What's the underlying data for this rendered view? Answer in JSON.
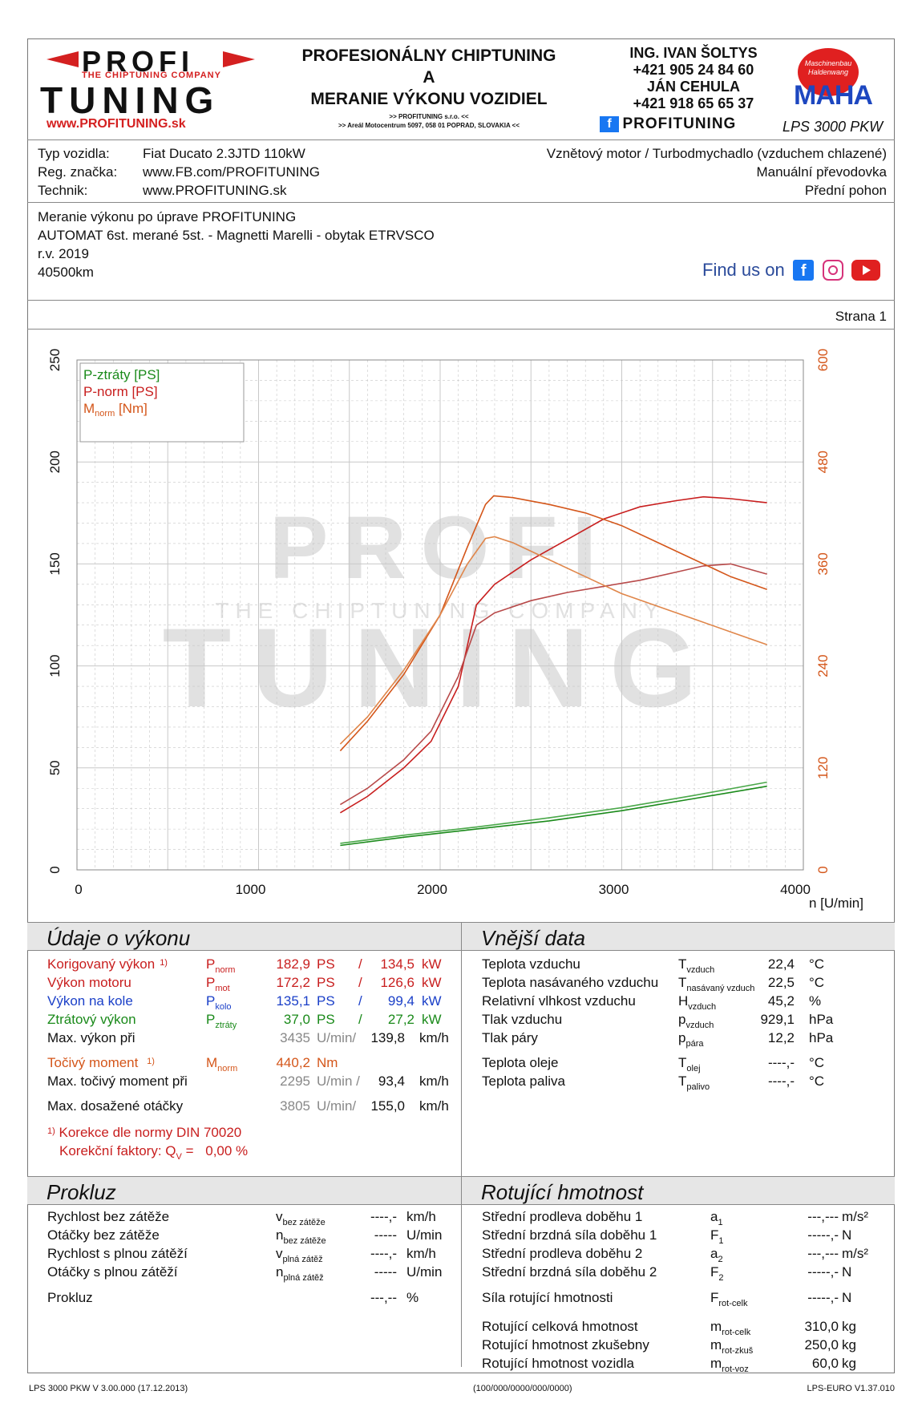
{
  "header": {
    "logo_top": "PROFI",
    "logo_tagline": "THE CHIPTUNING COMPANY",
    "logo_bottom": "TUNING",
    "logo_url": "www.PROFITUNING.sk",
    "title_line1": "PROFESIONÁLNY CHIPTUNING",
    "title_line2": "A",
    "title_line3": "MERANIE VÝKONU VOZIDIEL",
    "company_line1": ">> PROFITUNING s.r.o. <<",
    "company_line2": ">> Areál Motocentrum 5097, 058 01 POPRAD, SLOVAKIA <<",
    "contact1_name": "ING. IVAN ŠOLTYS",
    "contact1_phone": "+421 905 24 84 60",
    "contact2_name": "JÁN CEHULA",
    "contact2_phone": "+421 918 65 65 37",
    "social_brand": "PROFITUNING",
    "maha_text": "MAHA",
    "maha_ring": "Maschinenbau Haldenwang",
    "lps_model": "LPS 3000 PKW"
  },
  "vehicle": {
    "type_label": "Typ vozidla:",
    "type_value": "Fiat Ducato 2.3JTD 110kW",
    "reg_label": "Reg. značka:",
    "reg_value": "www.FB.com/PROFITUNING",
    "tech_label": "Technik:",
    "tech_value": "www.PROFITUNING.sk",
    "engine": "Vznětový motor / Turbodmychadlo (vzduchem chlazené)",
    "gearbox": "Manuální převodovka",
    "drive": "Přední pohon"
  },
  "notes": {
    "line1": "Meranie výkonu po úprave PROFITUNING",
    "line2": "AUTOMAT 6st. merané 5st. - Magnetti Marelli - obytak ETRVSCO",
    "line3": "r.v. 2019",
    "line4": "40500km",
    "find_us": "Find us on"
  },
  "page_label": "Strana 1",
  "chart_data": {
    "type": "line",
    "x_ticks": [
      "0",
      "1000",
      "2000",
      "3000",
      "4000"
    ],
    "y_left_ticks": [
      "0",
      "50",
      "100",
      "150",
      "200",
      "250"
    ],
    "y_right_ticks": [
      "0",
      "120",
      "240",
      "360",
      "480",
      "600"
    ],
    "xlabel": "n [U/min]",
    "xlim": [
      0,
      4000
    ],
    "ylim_left": [
      0,
      250
    ],
    "ylim_right": [
      0,
      600
    ],
    "grid": true,
    "legend_position": "top-left",
    "legend": [
      {
        "label": "P-ztráty [PS]",
        "color": "#1a8a1a"
      },
      {
        "label": "P-norm [PS]",
        "color": "#c81e1e"
      },
      {
        "label": "M",
        "sub": "norm",
        "unit": " [Nm]",
        "color": "#d4561a"
      }
    ],
    "series": [
      {
        "name": "P-ztráty [PS]",
        "axis": "left",
        "color": "#1a8a1a",
        "x": [
          1450,
          1800,
          2200,
          2600,
          3000,
          3400,
          3800
        ],
        "y": [
          12,
          16,
          20,
          24,
          29,
          35,
          41
        ]
      },
      {
        "name": "P-ztráty [PS]",
        "axis": "left",
        "color": "#4aa84a",
        "x": [
          1450,
          1800,
          2200,
          2600,
          3000,
          3400,
          3800
        ],
        "y": [
          13,
          17,
          21,
          25.5,
          30.5,
          36.5,
          43
        ]
      },
      {
        "name": "P-norm [PS]",
        "axis": "left",
        "color": "#c81e1e",
        "x": [
          1450,
          1600,
          1800,
          1950,
          2100,
          2200,
          2300,
          2500,
          2700,
          2900,
          3100,
          3300,
          3450,
          3600,
          3800
        ],
        "y": [
          28,
          36,
          50,
          63,
          90,
          130,
          140,
          152,
          162,
          172,
          178,
          181,
          182.9,
          182,
          180
        ]
      },
      {
        "name": "P-norm [PS]",
        "axis": "left",
        "color": "#b84a4a",
        "x": [
          1450,
          1600,
          1800,
          1950,
          2100,
          2200,
          2300,
          2500,
          2700,
          2900,
          3100,
          3300,
          3450,
          3600,
          3800
        ],
        "y": [
          32,
          40,
          54,
          68,
          95,
          120,
          126,
          132,
          136,
          139,
          142,
          146,
          149,
          150,
          145
        ]
      },
      {
        "name": "M norm [Nm]",
        "axis": "right",
        "color": "#d4561a",
        "x": [
          1450,
          1600,
          1800,
          2000,
          2150,
          2250,
          2295,
          2400,
          2600,
          2800,
          3000,
          3200,
          3400,
          3600,
          3800
        ],
        "y": [
          140,
          175,
          230,
          300,
          380,
          430,
          440.2,
          438,
          430,
          420,
          405,
          385,
          365,
          345,
          330
        ]
      },
      {
        "name": "M norm [Nm]",
        "axis": "right",
        "color": "#e0864a",
        "x": [
          1450,
          1600,
          1800,
          2000,
          2150,
          2250,
          2300,
          2400,
          2600,
          2800,
          3000,
          3200,
          3400,
          3600,
          3800
        ],
        "y": [
          148,
          180,
          235,
          300,
          360,
          390,
          392,
          385,
          365,
          345,
          325,
          310,
          295,
          280,
          265
        ]
      }
    ]
  },
  "vykon": {
    "title": "Údaje o výkonu",
    "rows": [
      {
        "label": "Korigovaný výkon",
        "sup": "1)",
        "sym": "P",
        "sub": "norm",
        "v1": "182,9",
        "u1": "PS",
        "sep": "/",
        "v2": "134,5",
        "u2": "kW"
      },
      {
        "label": "Výkon motoru",
        "sym": "P",
        "sub": "mot",
        "v1": "172,2",
        "u1": "PS",
        "sep": "/",
        "v2": "126,6",
        "u2": "kW"
      },
      {
        "label": "Výkon na kole",
        "sym": "P",
        "sub": "kolo",
        "v1": "135,1",
        "u1": "PS",
        "sep": "/",
        "v2": "99,4",
        "u2": "kW"
      },
      {
        "label": "Ztrátový výkon",
        "sym": "P",
        "sub": "ztráty",
        "v1": "37,0",
        "u1": "PS",
        "sep": "/",
        "v2": "27,2",
        "u2": "kW"
      }
    ],
    "maxvykon_label": "Max. výkon při",
    "maxvykon_rpm": "3435",
    "maxvykon_unit": "U/min/",
    "maxvykon_speed": "139,8",
    "maxvykon_speed_unit": "km/h",
    "moment_label": "Točivý moment",
    "moment_sup": "1)",
    "moment_sym": "M",
    "moment_sub": "norm",
    "moment_val": "440,2",
    "moment_unit": "Nm",
    "maxmoment_label": "Max. točivý moment při",
    "maxmoment_rpm": "2295",
    "maxmoment_unit": "U/min /",
    "maxmoment_speed": "93,4",
    "maxmoment_speed_unit": "km/h",
    "maxotacky_label": "Max. dosažené otáčky",
    "maxotacky_rpm": "3805",
    "maxotacky_unit": "U/min/",
    "maxotacky_speed": "155,0",
    "maxotacky_speed_unit": "km/h",
    "korekce_sup": "1)",
    "korekce_text": "Korekce dle normy DIN 70020",
    "faktor_label": "Korekční faktory: Q",
    "faktor_sub": "V",
    "faktor_eq": " =",
    "faktor_val": "0,00 %"
  },
  "vnejsi": {
    "title": "Vnější data",
    "rows": [
      {
        "label": "Teplota vzduchu",
        "sym": "T",
        "sub": "vzduch",
        "val": "22,4",
        "unit": "°C"
      },
      {
        "label": "Teplota nasávaného vzduchu",
        "sym": "T",
        "sub": "nasávaný vzduch",
        "val": "22,5",
        "unit": "°C"
      },
      {
        "label": "Relativní vlhkost vzduchu",
        "sym": "H",
        "sub": "vzduch",
        "val": "45,2",
        "unit": "%"
      },
      {
        "label": "Tlak vzduchu",
        "sym": "p",
        "sub": "vzduch",
        "val": "929,1",
        "unit": "hPa"
      },
      {
        "label": "Tlak páry",
        "sym": "p",
        "sub": "pára",
        "val": "12,2",
        "unit": "hPa"
      },
      {
        "label": "Teplota oleje",
        "sym": "T",
        "sub": "olej",
        "val": "----,-",
        "unit": "°C"
      },
      {
        "label": "Teplota paliva",
        "sym": "T",
        "sub": "palivo",
        "val": "----,-",
        "unit": "°C"
      }
    ]
  },
  "prokluz": {
    "title": "Prokluz",
    "rows": [
      {
        "label": "Rychlost bez zátěže",
        "sym": "v",
        "sub": "bez zátěže",
        "val": "----,-",
        "unit": "km/h"
      },
      {
        "label": "Otáčky bez zátěže",
        "sym": "n",
        "sub": "bez zátěže",
        "val": "-----",
        "unit": "U/min"
      },
      {
        "label": "Rychlost s plnou zátěží",
        "sym": "v",
        "sub": "plná zátěž",
        "val": "----,-",
        "unit": "km/h"
      },
      {
        "label": "Otáčky s plnou zátěží",
        "sym": "n",
        "sub": "plná zátěž",
        "val": "-----",
        "unit": "U/min"
      }
    ],
    "prokluz_label": "Prokluz",
    "prokluz_val": "---,--",
    "prokluz_unit": "%"
  },
  "rotujici": {
    "title": "Rotující hmotnost",
    "rows": [
      {
        "label": "Střední prodleva doběhu 1",
        "sym": "a",
        "sub": "1",
        "val": "---,---",
        "unit": "m/s²"
      },
      {
        "label": "Střední brzdná síla doběhu 1",
        "sym": "F",
        "sub": "1",
        "val": "-----,-",
        "unit": "N"
      },
      {
        "label": "Střední prodleva doběhu 2",
        "sym": "a",
        "sub": "2",
        "val": "---,---",
        "unit": "m/s²"
      },
      {
        "label": "Střední brzdná síla doběhu 2",
        "sym": "F",
        "sub": "2",
        "val": "-----,-",
        "unit": "N"
      }
    ],
    "sila": {
      "label": "Síla rotující hmotnosti",
      "sym": "F",
      "sub": "rot-celk",
      "val": "-----,-",
      "unit": "N"
    },
    "hmot_rows": [
      {
        "label": "Rotující celková hmotnost",
        "sym": "m",
        "sub": "rot-celk",
        "val": "310,0",
        "unit": "kg"
      },
      {
        "label": "Rotující hmotnost zkušebny",
        "sym": "m",
        "sub": "rot-zkuš",
        "val": "250,0",
        "unit": "kg"
      },
      {
        "label": "Rotující hmotnost vozidla",
        "sym": "m",
        "sub": "rot-voz",
        "val": "60,0",
        "unit": "kg"
      }
    ]
  },
  "footer": {
    "left": "LPS 3000 PKW V 3.00.000 (17.12.2013)",
    "center": "(100/000/0000/000/0000)",
    "right": "LPS-EURO V1.37.010"
  },
  "colors": {
    "red": "#c81e1e",
    "green": "#1a8a1a",
    "orange": "#d4561a",
    "blue": "#1a3fc8",
    "maha_blue": "#1d47c0",
    "fb_blue": "#1877f2"
  }
}
